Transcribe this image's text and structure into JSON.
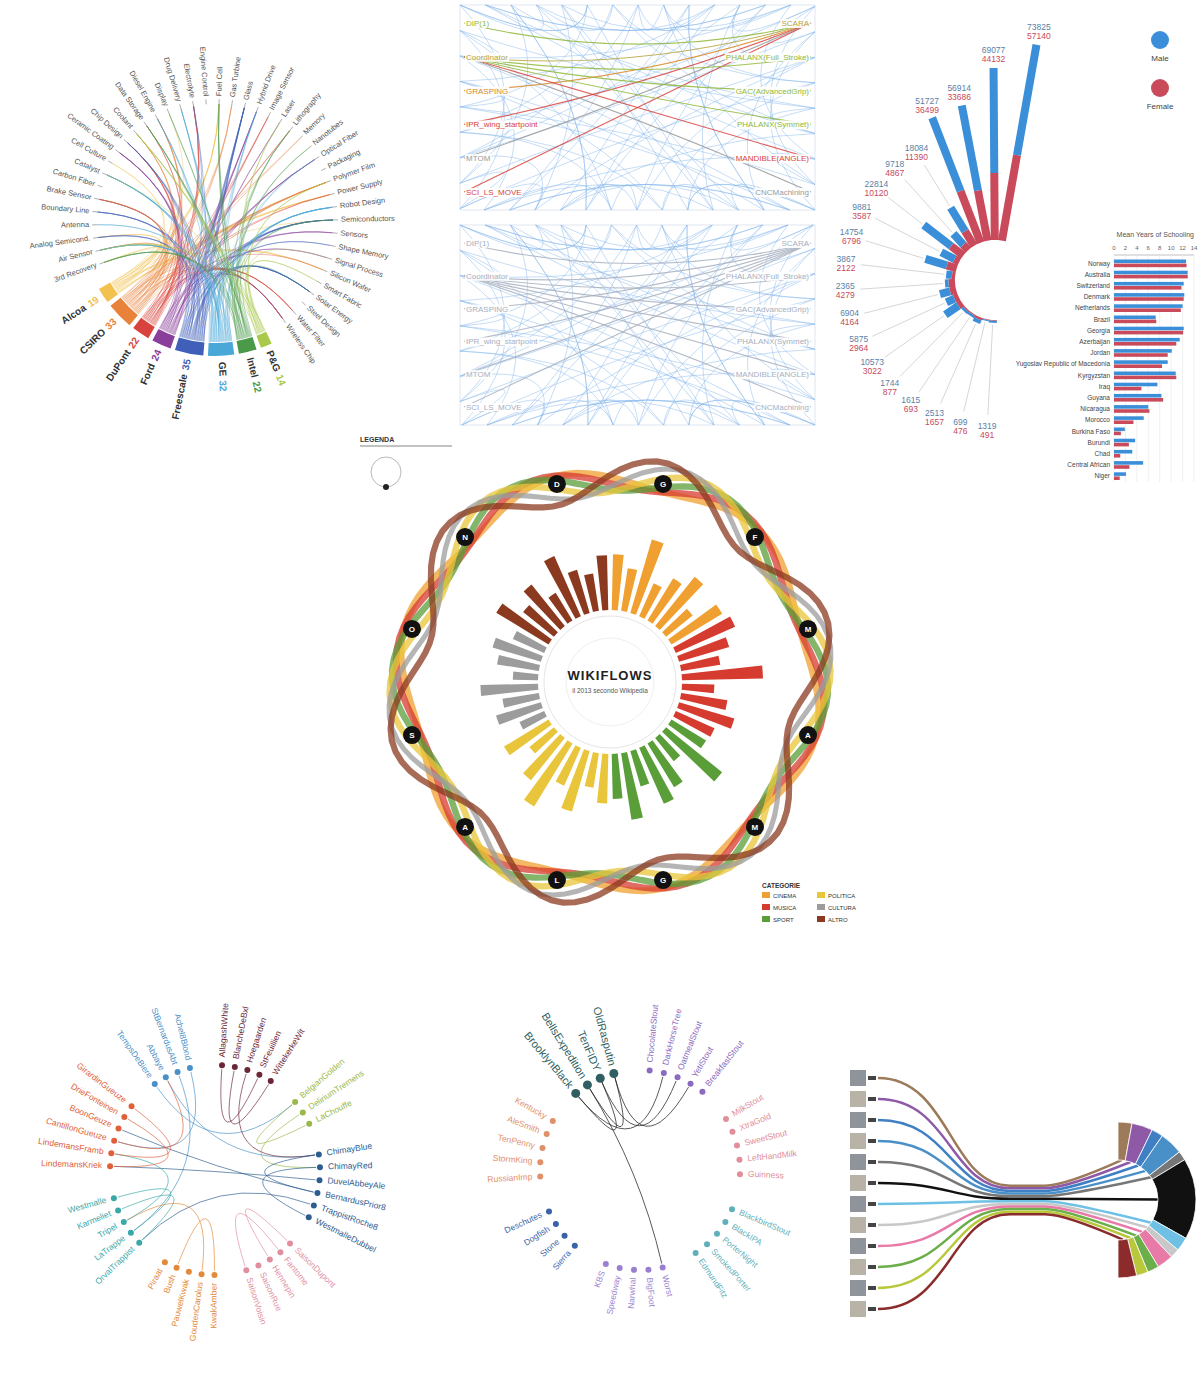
{
  "chart_data": [
    {
      "type": "chord",
      "sources": [
        {
          "name": "Alcoa",
          "value": 19,
          "color": "#f2c14e"
        },
        {
          "name": "CSIRO",
          "value": 33,
          "color": "#e8823a"
        },
        {
          "name": "DuPont",
          "value": 22,
          "color": "#d9433d"
        },
        {
          "name": "Ford",
          "value": 24,
          "color": "#8a3f9a"
        },
        {
          "name": "Freescale",
          "value": 35,
          "color": "#3f5fb8"
        },
        {
          "name": "GE",
          "value": 32,
          "color": "#4aa8d8"
        },
        {
          "name": "Intel",
          "value": 22,
          "color": "#4b9a4a"
        },
        {
          "name": "P&G",
          "value": 14,
          "color": "#a8c94a"
        }
      ],
      "targets": [
        "3rd Recovery",
        "Air Sensor",
        "Analog Semicond.",
        "Antenna",
        "Boundary Line",
        "Brake Sensor",
        "Carbon Fiber",
        "Catalyst",
        "Cell Culture",
        "Ceramic Coating",
        "Chip Design",
        "Coolant",
        "Data Storage",
        "Diesel Engine",
        "Display",
        "Drug Delivery",
        "Electrolyte",
        "Engine Control",
        "Fuel Cell",
        "Gas Turbine",
        "Glass",
        "Hybrid Drive",
        "Image Sensor",
        "Laser",
        "Lithography",
        "Memory",
        "Nanotubes",
        "Optical Fiber",
        "Packaging",
        "Polymer Film",
        "Power Supply",
        "Robot Design",
        "Semiconductors",
        "Sensors",
        "Shape Memory",
        "Signal Process",
        "Silicon Wafer",
        "Smart Fabric",
        "Solar Energy",
        "Steel Design",
        "Water Filter",
        "Wireless Chip"
      ]
    },
    {
      "type": "network",
      "panels": [
        {
          "left": [
            {
              "text": "DIP(1)",
              "color": "#8fb83a"
            },
            {
              "text": "Coordinator",
              "color": "#b5a33a"
            },
            {
              "text": "GRASPING",
              "color": "#d98a2b"
            },
            {
              "text": "IPR_wing_startpoint",
              "color": "#d9433d"
            },
            {
              "text": "MTOM",
              "color": "#9a9a9a"
            },
            {
              "text": "SCI_LS_MOVE",
              "color": "#d9433d"
            }
          ],
          "right": [
            {
              "text": "SCARA",
              "color": "#b5a33a"
            },
            {
              "text": "PHALANX(Full_Stroke)",
              "color": "#8fb83a"
            },
            {
              "text": "GAC(AdvancedGrip)",
              "color": "#8fb83a"
            },
            {
              "text": "PHALANX(Symmet)",
              "color": "#8fb83a"
            },
            {
              "text": "MANDIBLE(ANGLE)",
              "color": "#d9433d"
            },
            {
              "text": "CNCMachining",
              "color": "#9a9a9a"
            }
          ]
        },
        {
          "left": [
            {
              "text": "DIP(1)",
              "color": "#a8b0c0"
            },
            {
              "text": "Coordinator",
              "color": "#a8b0c0"
            },
            {
              "text": "GRASPING",
              "color": "#a8b0c0"
            },
            {
              "text": "IPR_wing_startpoint",
              "color": "#a8b0c0"
            },
            {
              "text": "MTOM",
              "color": "#a8b0c0"
            },
            {
              "text": "SCI_LS_MOVE",
              "color": "#a8b0c0"
            }
          ],
          "right": [
            {
              "text": "SCARA",
              "color": "#a8b0c0"
            },
            {
              "text": "PHALANX(Full_Stroke)",
              "color": "#a8b0c0"
            },
            {
              "text": "GAC(AdvancedGrip)",
              "color": "#a8b0c0"
            },
            {
              "text": "PHALANX(Symmet)",
              "color": "#a8b0c0"
            },
            {
              "text": "MANDIBLE(ANGLE)",
              "color": "#a8b0c0"
            },
            {
              "text": "CNCMachining",
              "color": "#a8b0c0"
            }
          ]
        }
      ]
    },
    {
      "type": "radial_bar",
      "stacked": true,
      "data_labels": true,
      "legend": "top-right",
      "tick_labels": false,
      "ylim": [
        0,
        135000
      ],
      "series": [
        {
          "name": "Male",
          "color": "#3b8fd9",
          "values": [
            73825,
            69077,
            56914,
            51727,
            18084,
            9718,
            22814,
            9881,
            14754,
            3867,
            2365,
            6904,
            5875,
            10573,
            1744,
            1615,
            2513,
            699,
            1319
          ]
        },
        {
          "name": "Female",
          "color": "#c94a5a",
          "values": [
            57140,
            44132,
            33686,
            36499,
            11390,
            4867,
            10120,
            3587,
            6796,
            2122,
            4279,
            4164,
            2964,
            3022,
            877,
            693,
            1657,
            476,
            491
          ]
        }
      ]
    },
    {
      "type": "bar",
      "orientation": "horizontal",
      "title": "Mean Years of Schooling",
      "xlim": [
        0,
        14
      ],
      "xticks": [
        0,
        2,
        4,
        6,
        8,
        10,
        12,
        14
      ],
      "grid": true,
      "categories": [
        "Norway",
        "Australia",
        "Switzerland",
        "Denmark",
        "Netherlands",
        "Brazil",
        "Georgia",
        "Azerbaijan",
        "Jordan",
        "Yugoslav Republic of Macedonia",
        "Kyrgyzstan",
        "Iraq",
        "Guyana",
        "Nicaragua",
        "Morocco",
        "Burkina Faso",
        "Burundi",
        "Chad",
        "Central African",
        "Niger"
      ],
      "series": [
        {
          "name": "Male",
          "color": "#3b8fd9",
          "values": [
            12.6,
            12.9,
            12.2,
            12.3,
            12.0,
            7.3,
            12.2,
            11.5,
            10.1,
            9.4,
            10.8,
            7.6,
            8.3,
            6.0,
            5.2,
            1.9,
            3.7,
            3.2,
            5.1,
            2.1
          ]
        },
        {
          "name": "Female",
          "color": "#c94a5a",
          "values": [
            12.7,
            12.9,
            11.8,
            12.2,
            11.7,
            7.4,
            12.1,
            10.9,
            9.4,
            8.4,
            10.9,
            4.8,
            8.6,
            6.2,
            3.4,
            1.2,
            2.6,
            1.1,
            2.7,
            1.0
          ]
        }
      ]
    },
    {
      "type": "radial_flow",
      "title": "WIKIFLOWS",
      "subtitle": "il 2013 secondo Wikipedia",
      "annotation": "LEGENDA",
      "legend_title": "CATEGORIE",
      "ylim": [
        0,
        100
      ],
      "tick_labels": false,
      "nodes": [
        "G",
        "F",
        "M",
        "A",
        "M",
        "G",
        "L",
        "A",
        "S",
        "O",
        "N",
        "D"
      ],
      "series": [
        {
          "name": "CINEMA",
          "color": "#f0a030",
          "values": [
            62,
            48,
            85,
            40,
            55,
            70,
            38,
            66
          ]
        },
        {
          "name": "MUSICA",
          "color": "#d63b2f",
          "values": [
            72,
            58,
            44,
            90,
            36,
            52,
            64,
            47
          ]
        },
        {
          "name": "SPORT",
          "color": "#5a9e3a",
          "values": [
            45,
            80,
            33,
            57,
            68,
            41,
            75,
            50
          ]
        },
        {
          "name": "POLITICA",
          "color": "#e8c53a",
          "values": [
            55,
            39,
            70,
            46,
            82,
            60,
            35,
            58
          ]
        },
        {
          "name": "CULTURA",
          "color": "#9c9c9c",
          "values": [
            30,
            52,
            41,
            64,
            28,
            47,
            56,
            38
          ]
        },
        {
          "name": "ALTRO",
          "color": "#8b3a1f",
          "values": [
            68,
            44,
            59,
            36,
            73,
            50,
            42,
            61
          ]
        }
      ]
    },
    {
      "type": "chord",
      "groups": [
        {
          "color": "#4a90c8",
          "labels": [
            "TempsDeBiere",
            "Abbaye",
            "StBernardusAbt",
            "Achel8Blond"
          ]
        },
        {
          "color": "#6b2737",
          "labels": [
            "AllagashWhite",
            "BlancheDeBxl",
            "Hoegaarden",
            "StFeuillien",
            "WittekerkeWit"
          ]
        },
        {
          "color": "#9bb84a",
          "labels": [
            "BelgianGolden",
            "DeliriumTremens",
            "LaChouffe"
          ]
        },
        {
          "color": "#2d5d8f",
          "labels": [
            "ChimayBlue",
            "ChimayRed",
            "DuvelAbbeyAle",
            "BernardusPrior8",
            "TrappistRoche8",
            "WestmalleDubbel"
          ]
        },
        {
          "color": "#e08f9f",
          "labels": [
            "SaisonDupont",
            "Fantome",
            "Hennepin",
            "SaisonRue",
            "SaisonVoisin"
          ]
        },
        {
          "color": "#e38a3a",
          "labels": [
            "KwakAmber",
            "GoudenCarolus",
            "PauwelKwak",
            "Bush",
            "Piraat"
          ]
        },
        {
          "color": "#3aa8a8",
          "labels": [
            "OrvalTrappist",
            "LaTrappe",
            "Tripel",
            "Karmeliet",
            "Westmalle"
          ]
        },
        {
          "color": "#e0603a",
          "labels": [
            "LindemansKriek",
            "LindemansFramb",
            "CantillonGueuze",
            "BoonGeuze",
            "DrieFonteinen",
            "GirardinGueuze"
          ]
        }
      ],
      "links": [
        [
          0,
          9
        ],
        [
          1,
          12
        ],
        [
          2,
          29
        ],
        [
          3,
          35
        ],
        [
          4,
          7
        ],
        [
          5,
          8
        ],
        [
          6,
          12
        ],
        [
          9,
          11
        ],
        [
          10,
          13
        ],
        [
          12,
          15
        ],
        [
          13,
          17
        ],
        [
          14,
          33
        ],
        [
          15,
          36
        ],
        [
          16,
          28
        ],
        [
          18,
          20
        ],
        [
          19,
          22
        ],
        [
          23,
          26
        ],
        [
          24,
          30
        ],
        [
          28,
          31
        ],
        [
          29,
          32
        ],
        [
          30,
          34
        ],
        [
          33,
          37
        ],
        [
          34,
          38
        ],
        [
          35,
          1
        ]
      ]
    },
    {
      "type": "chord",
      "groups": [
        {
          "color": "#2f5f62",
          "labels": [
            "BrooklynBlack",
            "BellsExpedition",
            "TenFIDY",
            "OldRasputin"
          ]
        },
        {
          "color": "#8a6bbf",
          "labels": [
            "ChocolateStout",
            "DarkHorseTree",
            "OatmealStout",
            "YetiStout",
            "BreakfastStout"
          ]
        },
        {
          "color": "#e08f9a",
          "labels": [
            "MilkStout",
            "XtraGold",
            "SweetStout",
            "LeftHandMilk",
            "Guinness"
          ]
        },
        {
          "color": "#5fb0ba",
          "labels": [
            "BlackbirdStout",
            "BlackIPA",
            "PorterNight",
            "SmokedPorter",
            "EdmundFitz"
          ]
        },
        {
          "color": "#9a7fd0",
          "labels": [
            "Worst",
            "BigFoot",
            "Narwhal",
            "Speedway",
            "KBS"
          ]
        },
        {
          "color": "#3a62a8",
          "labels": [
            "Sierra",
            "Stone",
            "Dogfish",
            "Deschutes"
          ]
        },
        {
          "color": "#e0906a",
          "labels": [
            "RussianImp",
            "StormKing",
            "TenPenny",
            "AleSmith",
            "Kentucky"
          ]
        }
      ],
      "links": [
        [
          0,
          2
        ],
        [
          1,
          3
        ],
        [
          0,
          5
        ],
        [
          2,
          6
        ],
        [
          3,
          7
        ],
        [
          1,
          19
        ]
      ]
    },
    {
      "type": "sankey",
      "values": [
        6,
        9,
        5,
        10,
        4,
        35,
        6,
        4,
        7,
        5,
        5,
        8
      ],
      "colors": [
        "#9c7a5a",
        "#8e5aa8",
        "#3f7fc4",
        "#4a90c8",
        "#777777",
        "#111111",
        "#6ec1e4",
        "#c8c8c8",
        "#e87aa8",
        "#6cae4a",
        "#b8c83a",
        "#8b2b2b"
      ]
    }
  ]
}
